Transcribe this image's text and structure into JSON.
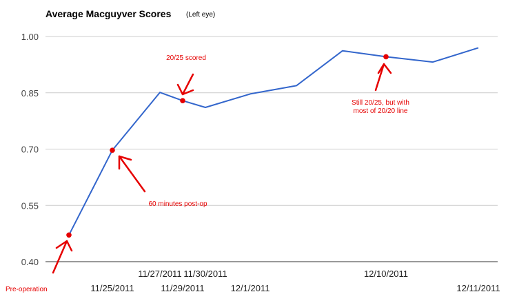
{
  "chart_data": {
    "type": "line",
    "title": "Average Macguyver Scores",
    "subtitle": "(Left eye)",
    "xlabel": "",
    "ylabel": "",
    "ylim": [
      0.4,
      1.0
    ],
    "yticks": [
      "1.00",
      "0.85",
      "0.70",
      "0.55",
      "0.40"
    ],
    "grid": "horizontal",
    "series": [
      {
        "color": "#3366cc",
        "values": [
          0.471,
          0.697,
          0.851,
          0.829,
          0.811,
          0.847,
          0.869,
          0.962,
          0.946,
          0.932,
          0.97
        ]
      }
    ],
    "xtick_labels": [
      {
        "text": "11/25/2011",
        "index": 1,
        "row": 2
      },
      {
        "text": "11/27/2011",
        "index": 2,
        "row": 1
      },
      {
        "text": "11/29/2011",
        "index": 3,
        "row": 2
      },
      {
        "text": "11/30/2011",
        "index": 4,
        "row": 1
      },
      {
        "text": "12/1/2011",
        "index": 5,
        "row": 2
      },
      {
        "text": "12/10/2011",
        "index": 8,
        "row": 1
      },
      {
        "text": "12/11/2011",
        "index": 10,
        "row": 2
      }
    ],
    "annotations": [
      {
        "lines": [
          "Pre-operation"
        ],
        "point_index": 0,
        "color": "#e60000"
      },
      {
        "lines": [
          "60 minutes post-op"
        ],
        "point_index": 1,
        "color": "#e60000"
      },
      {
        "lines": [
          "20/25 scored"
        ],
        "point_index": 3,
        "color": "#e60000"
      },
      {
        "lines": [
          "Still 20/25, but with",
          "most of 20/20 line"
        ],
        "point_index": 8,
        "color": "#e60000"
      }
    ]
  }
}
